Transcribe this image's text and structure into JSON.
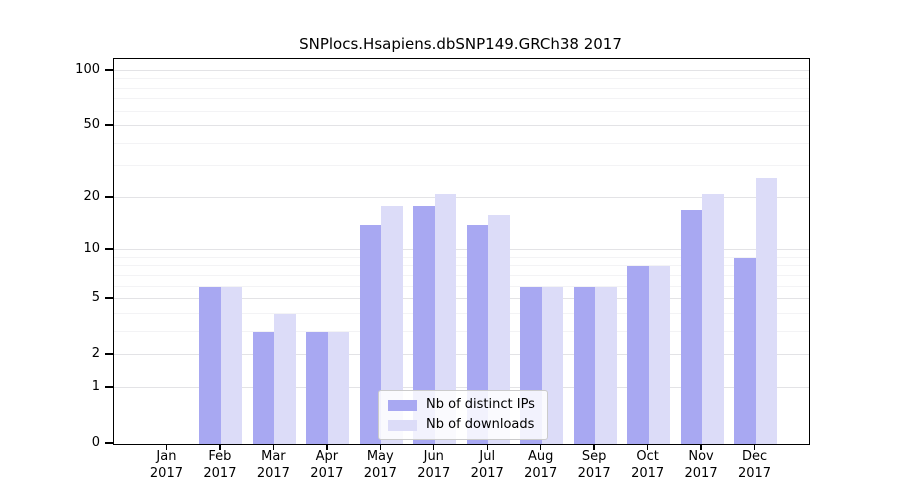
{
  "chart_data": {
    "type": "bar",
    "title": "SNPlocs.Hsapiens.dbSNP149.GRCh38 2017",
    "categories": [
      "Jan 2017",
      "Feb 2017",
      "Mar 2017",
      "Apr 2017",
      "May 2017",
      "Jun 2017",
      "Jul 2017",
      "Aug 2017",
      "Sep 2017",
      "Oct 2017",
      "Nov 2017",
      "Dec 2017"
    ],
    "x_tick_months": [
      "Jan",
      "Feb",
      "Mar",
      "Apr",
      "May",
      "Jun",
      "Jul",
      "Aug",
      "Sep",
      "Oct",
      "Nov",
      "Dec"
    ],
    "x_tick_year": "2017",
    "series": [
      {
        "name": "Nb of distinct IPs",
        "color": "#a8a8f2",
        "values": [
          0,
          6,
          3,
          3,
          14,
          18,
          14,
          6,
          6,
          8,
          17,
          9
        ]
      },
      {
        "name": "Nb of downloads",
        "color": "#dcdcf8",
        "values": [
          0,
          6,
          4,
          3,
          18,
          21,
          16,
          6,
          6,
          8,
          21,
          26
        ]
      }
    ],
    "yscale": "log1p",
    "ylim": [
      0,
      116
    ],
    "y_major_ticks": [
      0,
      1,
      2,
      5,
      10,
      20,
      50,
      100
    ],
    "y_minor_gridlines": [
      3,
      4,
      6,
      7,
      8,
      9,
      30,
      40,
      60,
      70,
      80,
      90
    ],
    "grid": true,
    "legend_position": "lower-center"
  },
  "colors": {
    "background": "#ffffff",
    "bar_distinct_ips": "#a8a8f2",
    "bar_downloads": "#dcdcf8",
    "grid_major": "#e3e3e6",
    "grid_minor": "#f3f3f5",
    "axis": "#000000",
    "text": "#000000",
    "legend_border": "#cbcbcb"
  }
}
